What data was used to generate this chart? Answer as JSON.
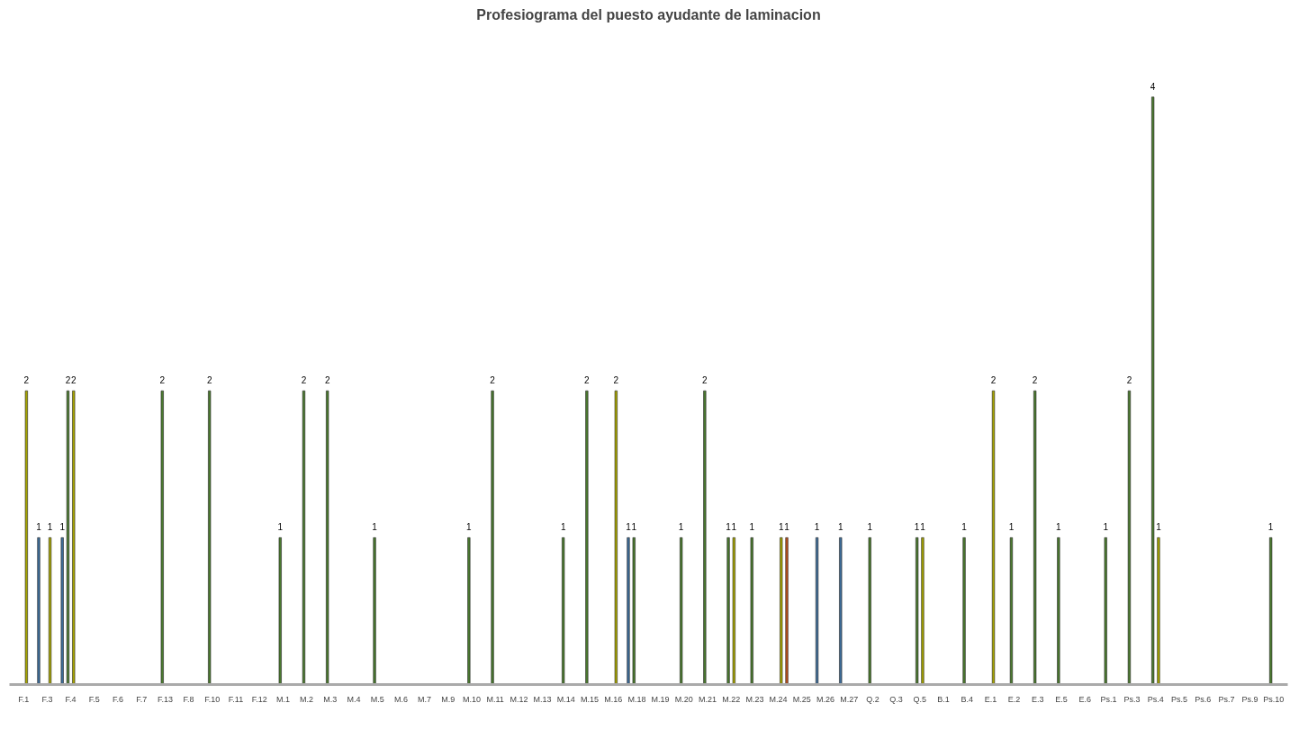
{
  "chart_data": {
    "type": "bar",
    "title": "Profesiograma del puesto ayudante de laminacion",
    "categories": [
      "F.1",
      "F.3",
      "F.4",
      "F.5",
      "F.6",
      "F.7",
      "F.13",
      "F.8",
      "F.10",
      "F.11",
      "F.12",
      "M.1",
      "M.2",
      "M.3",
      "M.4",
      "M.5",
      "M.6",
      "M.7",
      "M.9",
      "M.10",
      "M.11",
      "M.12",
      "M.13",
      "M.14",
      "M.15",
      "M.16",
      "M.18",
      "M.19",
      "M.20",
      "M.21",
      "M.22",
      "M.23",
      "M.24",
      "M.25",
      "M.26",
      "M.27",
      "Q.2",
      "Q.3",
      "Q.5",
      "B.1",
      "B.4",
      "E.1",
      "E.2",
      "E.3",
      "E.5",
      "E.6",
      "Ps.1",
      "Ps.3",
      "Ps.4",
      "Ps.5",
      "Ps.6",
      "Ps.7",
      "Ps.9",
      "Ps.10"
    ],
    "series": [
      {
        "color": "#3d6d99",
        "values": [
          null,
          1,
          1,
          null,
          null,
          null,
          null,
          null,
          null,
          null,
          null,
          null,
          null,
          null,
          null,
          null,
          null,
          null,
          null,
          null,
          null,
          null,
          null,
          null,
          null,
          null,
          1,
          null,
          null,
          null,
          null,
          null,
          null,
          null,
          1,
          1,
          null,
          null,
          null,
          null,
          null,
          null,
          null,
          null,
          null,
          null,
          null,
          null,
          null,
          null,
          null,
          null,
          null,
          null
        ]
      },
      {
        "color": "#4b7a2f",
        "values": [
          null,
          null,
          2,
          null,
          null,
          null,
          2,
          null,
          2,
          null,
          null,
          1,
          2,
          2,
          null,
          1,
          null,
          null,
          null,
          1,
          2,
          null,
          null,
          1,
          2,
          null,
          1,
          null,
          1,
          2,
          1,
          1,
          null,
          null,
          null,
          null,
          1,
          null,
          1,
          null,
          1,
          null,
          1,
          2,
          1,
          null,
          1,
          2,
          4,
          null,
          null,
          null,
          null,
          1
        ]
      },
      {
        "color": "#a6a400",
        "values": [
          2,
          1,
          2,
          null,
          null,
          null,
          null,
          null,
          null,
          null,
          null,
          null,
          null,
          null,
          null,
          null,
          null,
          null,
          null,
          null,
          null,
          null,
          null,
          null,
          null,
          2,
          null,
          null,
          null,
          null,
          1,
          null,
          1,
          null,
          null,
          null,
          null,
          null,
          1,
          null,
          null,
          2,
          null,
          null,
          null,
          null,
          null,
          null,
          1,
          null,
          null,
          null,
          null,
          null
        ]
      },
      {
        "color": "#b8501c",
        "values": [
          null,
          null,
          null,
          null,
          null,
          null,
          null,
          null,
          null,
          null,
          null,
          null,
          null,
          null,
          null,
          null,
          null,
          null,
          null,
          null,
          null,
          null,
          null,
          null,
          null,
          null,
          null,
          null,
          null,
          null,
          null,
          null,
          1,
          null,
          null,
          null,
          null,
          null,
          null,
          null,
          null,
          null,
          null,
          null,
          null,
          null,
          null,
          null,
          null,
          null,
          null,
          null,
          null,
          null
        ]
      }
    ],
    "data_labels": true,
    "grid": false
  }
}
